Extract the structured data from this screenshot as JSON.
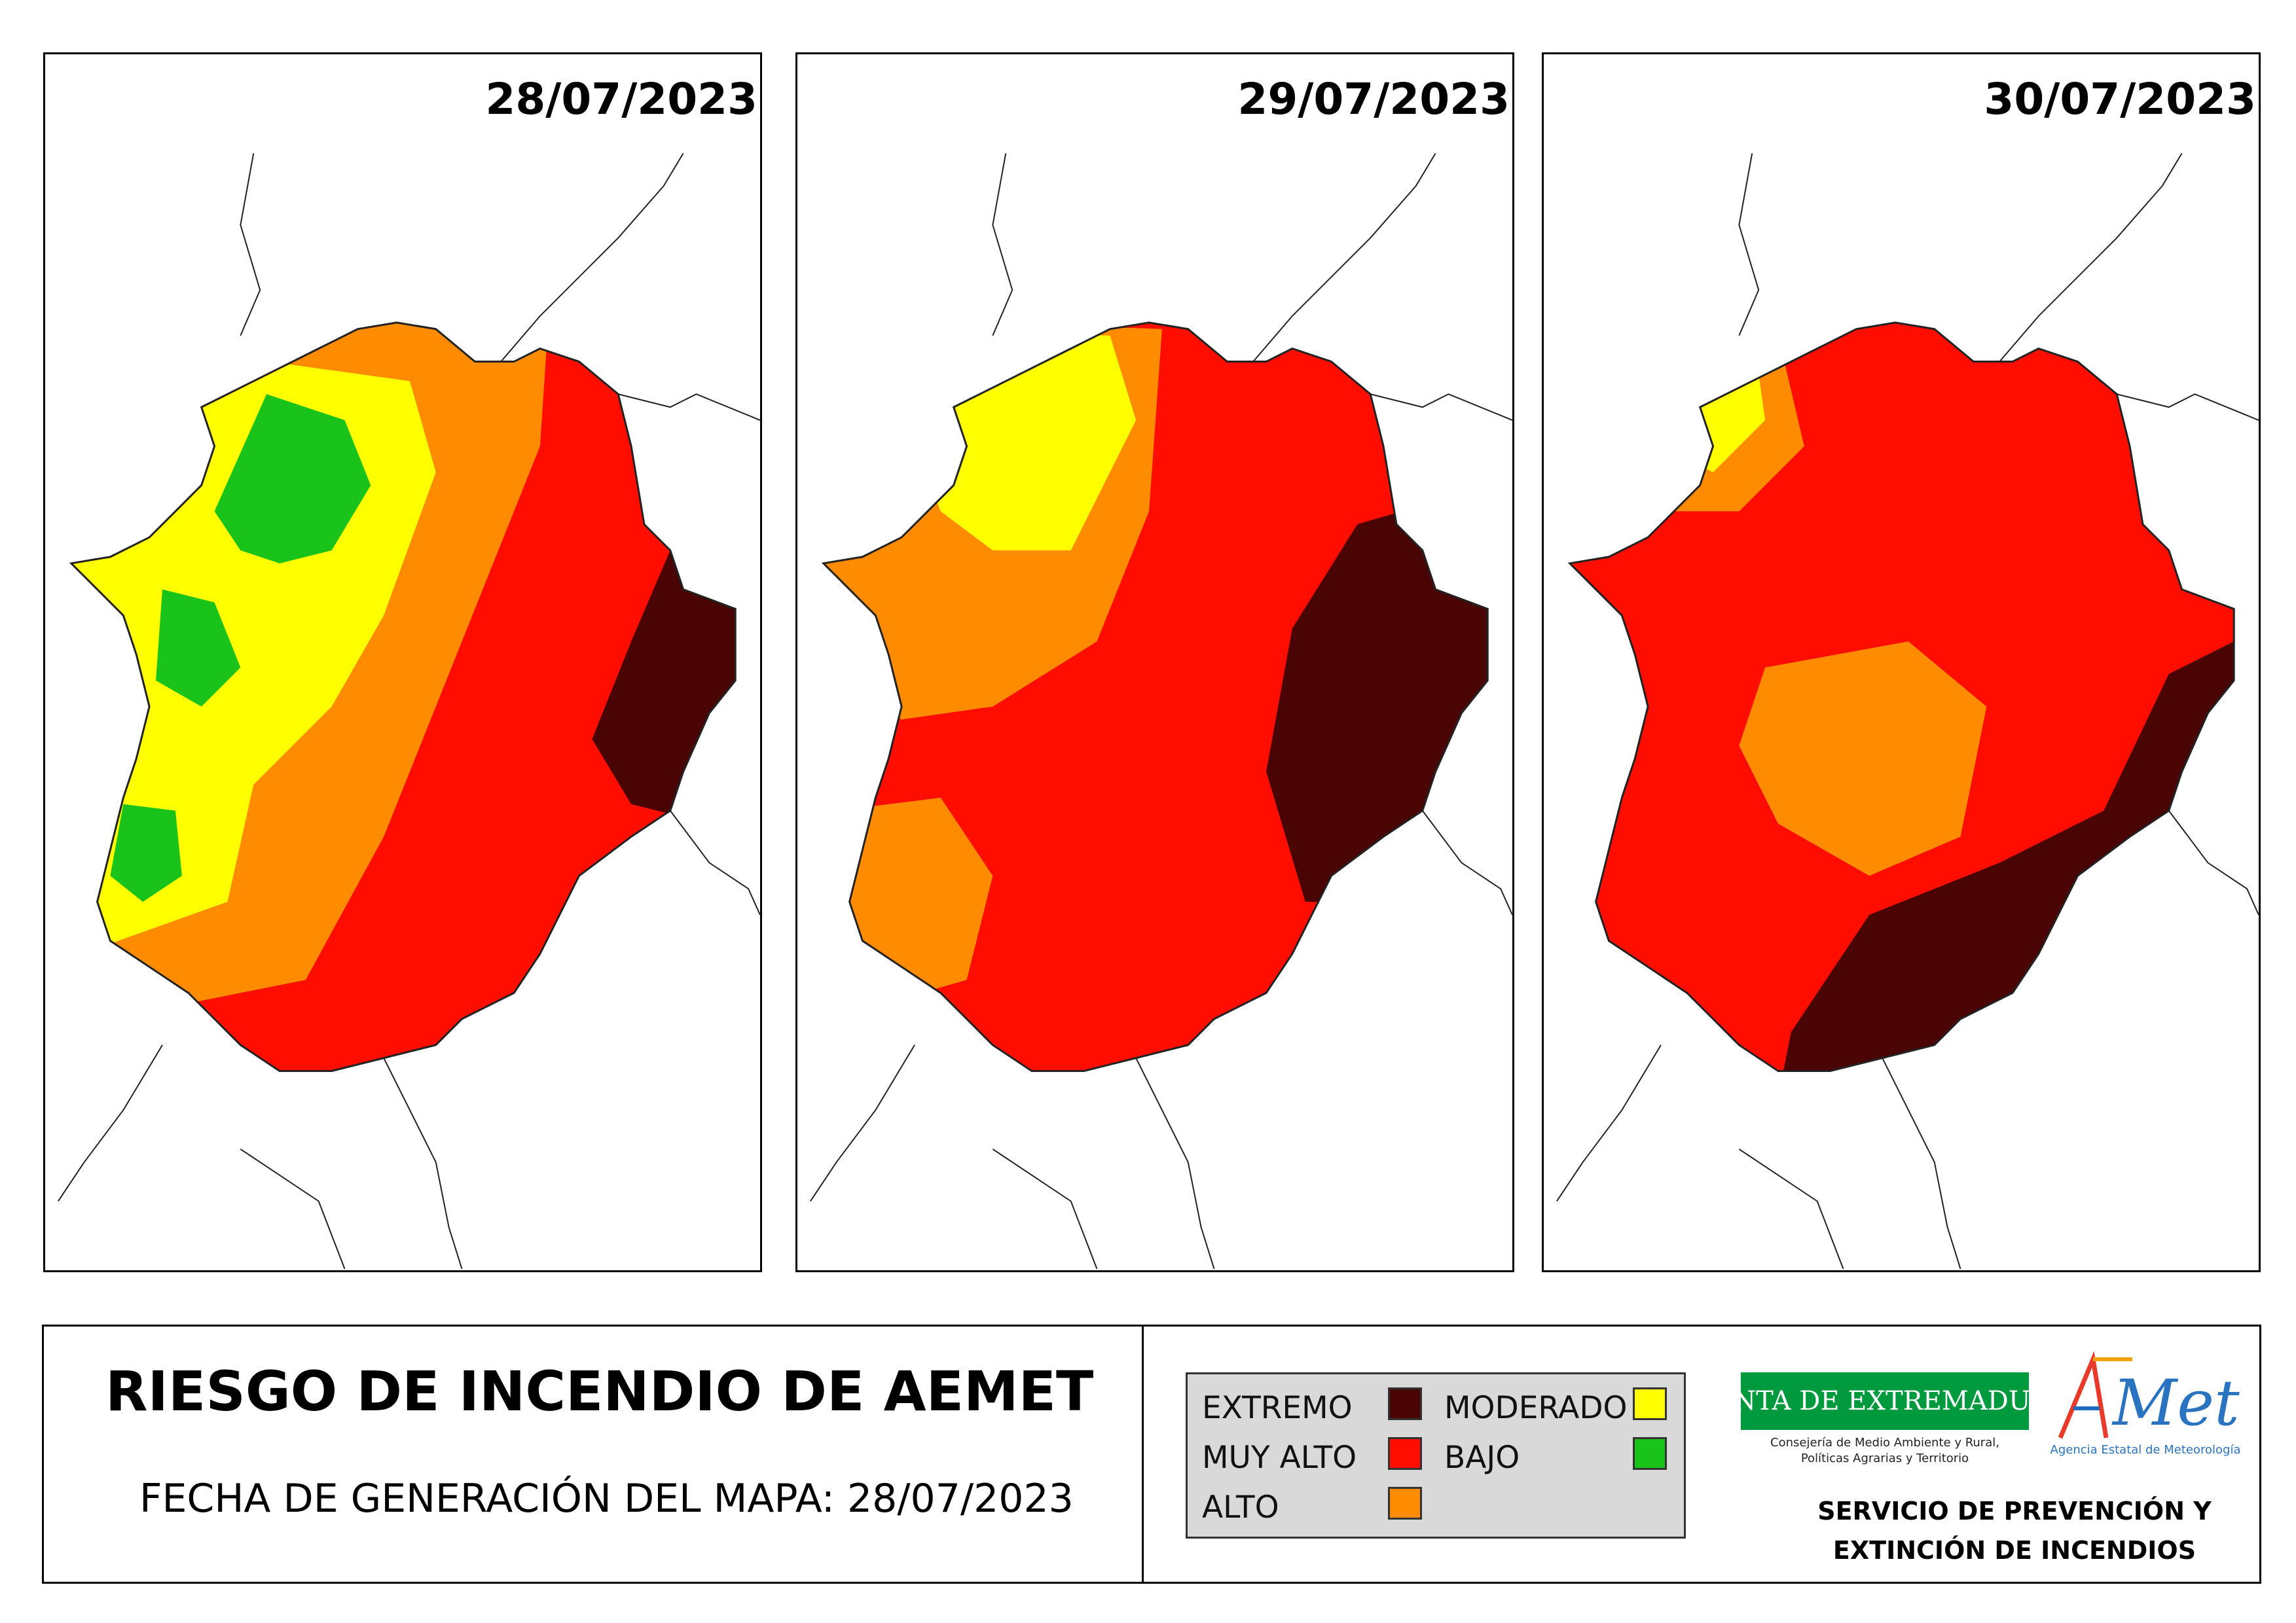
{
  "maps": [
    {
      "date": "28/07/2023"
    },
    {
      "date": "29/07/2023"
    },
    {
      "date": "30/07/2023"
    }
  ],
  "title": "RIESGO DE INCENDIO DE AEMET",
  "generation_date": "FECHA DE GENERACIÓN DEL MAPA: 28/07/2023",
  "legend": [
    {
      "label": "EXTREMO",
      "color": "#4a0404"
    },
    {
      "label": "MUY ALTO",
      "color": "#ff0d00"
    },
    {
      "label": "ALTO",
      "color": "#ff8c00"
    },
    {
      "label": "MODERADO",
      "color": "#ffff00"
    },
    {
      "label": "BAJO",
      "color": "#19c319"
    }
  ],
  "logos": {
    "junta": "JUNTA DE EXTREMADURA",
    "junta_subtitle_1": "Consejería de Medio Ambiente y Rural,",
    "junta_subtitle_2": "Políticas Agrarias y Territorio",
    "aemet": "AEMet",
    "aemet_subtitle": "Agencia Estatal de Meteorología"
  },
  "service_line_1": "SERVICIO DE PREVENCIÓN Y",
  "service_line_2": "EXTINCIÓN DE INCENDIOS"
}
